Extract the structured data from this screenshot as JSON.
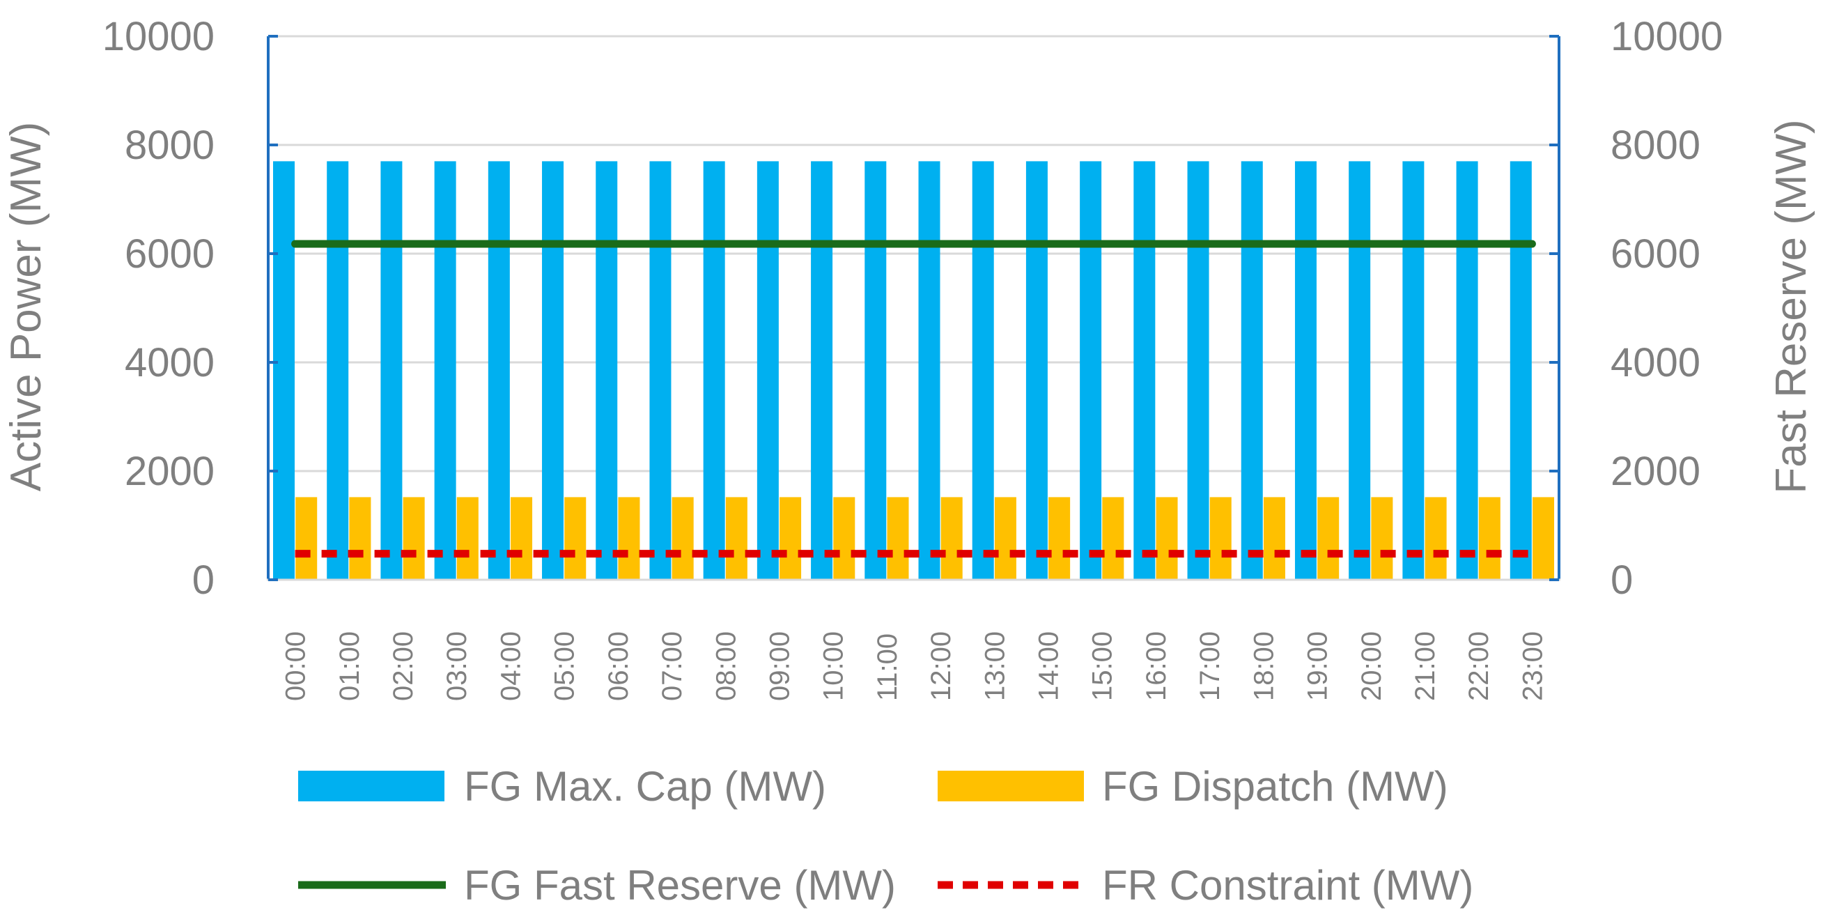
{
  "chart_data": {
    "type": "bar",
    "categories": [
      "00:00",
      "01:00",
      "02:00",
      "03:00",
      "04:00",
      "05:00",
      "06:00",
      "07:00",
      "08:00",
      "09:00",
      "10:00",
      "11:00",
      "12:00",
      "13:00",
      "14:00",
      "15:00",
      "16:00",
      "17:00",
      "18:00",
      "19:00",
      "20:00",
      "21:00",
      "22:00",
      "23:00"
    ],
    "series": [
      {
        "name": "FG Max. Cap (MW)",
        "kind": "bar",
        "axis": "left",
        "color": "#00b0f0",
        "values": [
          7700,
          7700,
          7700,
          7700,
          7700,
          7700,
          7700,
          7700,
          7700,
          7700,
          7700,
          7700,
          7700,
          7700,
          7700,
          7700,
          7700,
          7700,
          7700,
          7700,
          7700,
          7700,
          7700,
          7700
        ]
      },
      {
        "name": "FG Dispatch (MW)",
        "kind": "bar",
        "axis": "left",
        "color": "#ffc000",
        "values": [
          1520,
          1520,
          1520,
          1520,
          1520,
          1520,
          1520,
          1520,
          1520,
          1520,
          1520,
          1520,
          1520,
          1520,
          1520,
          1520,
          1520,
          1520,
          1520,
          1520,
          1520,
          1520,
          1520,
          1520
        ]
      },
      {
        "name": "FG Fast Reserve (MW)",
        "kind": "line",
        "axis": "right",
        "color": "#1a6b1a",
        "values": [
          6180,
          6180,
          6180,
          6180,
          6180,
          6180,
          6180,
          6180,
          6180,
          6180,
          6180,
          6180,
          6180,
          6180,
          6180,
          6180,
          6180,
          6180,
          6180,
          6180,
          6180,
          6180,
          6180,
          6180
        ]
      },
      {
        "name": "FR Constraint (MW)",
        "kind": "dashed-line",
        "axis": "right",
        "color": "#e00000",
        "values": [
          480,
          480,
          480,
          480,
          480,
          480,
          480,
          480,
          480,
          480,
          480,
          480,
          480,
          480,
          480,
          480,
          480,
          480,
          480,
          480,
          480,
          480,
          480,
          480
        ]
      }
    ],
    "ylabel": "Active Power (MW)",
    "y2label": "Fast Reserve (MW)",
    "ylim": [
      0,
      10000
    ],
    "y2lim": [
      0,
      10000
    ],
    "yticks": [
      "0",
      "2000",
      "4000",
      "6000",
      "8000",
      "10000"
    ],
    "y2ticks": [
      "0",
      "2000",
      "4000",
      "6000",
      "8000",
      "10000"
    ],
    "grid": true,
    "legend_position": "bottom"
  }
}
